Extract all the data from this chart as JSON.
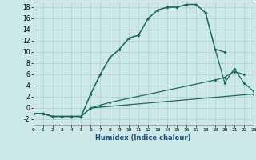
{
  "xlabel": "Humidex (Indice chaleur)",
  "bg_color": "#cce8e8",
  "grid_color": "#aad0d0",
  "line_color": "#1a6b5a",
  "xlim": [
    0,
    23
  ],
  "ylim": [
    -3,
    19
  ],
  "xticks": [
    0,
    1,
    2,
    3,
    4,
    5,
    6,
    7,
    8,
    9,
    10,
    11,
    12,
    13,
    14,
    15,
    16,
    17,
    18,
    19,
    20,
    21,
    22,
    23
  ],
  "yticks": [
    -2,
    0,
    2,
    4,
    6,
    8,
    10,
    12,
    14,
    16,
    18
  ],
  "series1_x": [
    0,
    1,
    2,
    3,
    4,
    5,
    6,
    7,
    8,
    9,
    10,
    11,
    12,
    13,
    14,
    15,
    16,
    17,
    18,
    19,
    20
  ],
  "series1_y": [
    -1,
    -1,
    -1.5,
    -1.5,
    -1.5,
    -1.5,
    2.5,
    6,
    9,
    10.5,
    12.5,
    13,
    16,
    17.5,
    18,
    18,
    18.5,
    18.5,
    17,
    10.5,
    10
  ],
  "series2_x": [
    0,
    1,
    2,
    3,
    4,
    5,
    6,
    7,
    8,
    9,
    10,
    11,
    12,
    13,
    14,
    15,
    16,
    17,
    18,
    19,
    20,
    21,
    22,
    23
  ],
  "series2_y": [
    -1,
    -1,
    -1.5,
    -1.5,
    -1.5,
    -1.5,
    2.5,
    6,
    9,
    10.5,
    12.5,
    13,
    16,
    17.5,
    18,
    18,
    18.5,
    18.5,
    17,
    10.5,
    4.5,
    7,
    4.5,
    3
  ],
  "series3_x": [
    0,
    1,
    2,
    3,
    4,
    5,
    6,
    7,
    8,
    19,
    20,
    21,
    22
  ],
  "series3_y": [
    -1,
    -1,
    -1.5,
    -1.5,
    -1.5,
    -1.5,
    0,
    0.5,
    1,
    5,
    5.5,
    6.5,
    6
  ],
  "series4_x": [
    0,
    1,
    2,
    3,
    4,
    5,
    6,
    23
  ],
  "series4_y": [
    -1,
    -1,
    -1.5,
    -1.5,
    -1.5,
    -1.5,
    0,
    2.5
  ]
}
